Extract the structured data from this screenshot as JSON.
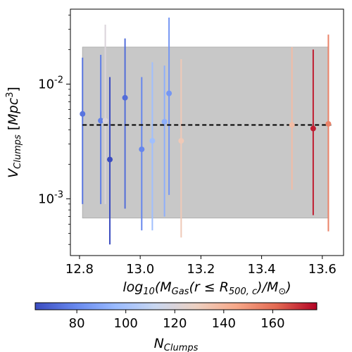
{
  "chart_data": {
    "type": "scatter",
    "title": "",
    "xlabel": "log10(M_Gas(r ≤ R_500,c)/M_⊙)",
    "ylabel": "V_Clumps [Mpc^3]",
    "xlim": [
      12.77,
      13.67
    ],
    "ylim": [
      0.00032,
      0.045
    ],
    "yscale": "log",
    "x_ticks": [
      12.8,
      13.0,
      13.2,
      13.4,
      13.6
    ],
    "x_tick_labels": [
      "12.8",
      "13.0",
      "13.2",
      "13.4",
      "13.6"
    ],
    "y_ticks": [
      0.001,
      0.01
    ],
    "y_tick_labels_exp": [
      "-3",
      "-2"
    ],
    "y_tick_base": "10",
    "reference_line": {
      "y": 0.0044,
      "style": "dashed",
      "color": "#000000"
    },
    "shaded_band": {
      "x_range": [
        12.81,
        13.62
      ],
      "y_range": [
        0.00068,
        0.021
      ],
      "color": "#c8c8c8"
    },
    "points": [
      {
        "x": 12.81,
        "y": 0.0055,
        "ylow": 0.0009,
        "yhigh": 0.017,
        "n": 74
      },
      {
        "x": 12.87,
        "y": 0.0048,
        "ylow": 0.0009,
        "yhigh": 0.018,
        "n": 77
      },
      {
        "x": 12.885,
        "y": 0.0048,
        "ylow": 0.0009,
        "yhigh": 0.033,
        "n": 120
      },
      {
        "x": 12.9,
        "y": 0.0022,
        "ylow": 0.0004,
        "yhigh": 0.0115,
        "n": 63
      },
      {
        "x": 12.95,
        "y": 0.0076,
        "ylow": 0.00082,
        "yhigh": 0.025,
        "n": 72
      },
      {
        "x": 13.005,
        "y": 0.0027,
        "ylow": 0.00053,
        "yhigh": 0.0115,
        "n": 79
      },
      {
        "x": 13.04,
        "y": 0.0032,
        "ylow": 0.00053,
        "yhigh": 0.0155,
        "n": 98
      },
      {
        "x": 13.08,
        "y": 0.0047,
        "ylow": 0.0007,
        "yhigh": 0.0145,
        "n": 92
      },
      {
        "x": 13.095,
        "y": 0.0083,
        "ylow": 0.00108,
        "yhigh": 0.038,
        "n": 84
      },
      {
        "x": 13.135,
        "y": 0.0032,
        "ylow": 0.00046,
        "yhigh": 0.0165,
        "n": 132
      },
      {
        "x": 13.5,
        "y": 0.0044,
        "ylow": 0.0012,
        "yhigh": 0.021,
        "n": 137
      },
      {
        "x": 13.57,
        "y": 0.0041,
        "ylow": 0.00072,
        "yhigh": 0.02,
        "n": 174
      },
      {
        "x": 13.62,
        "y": 0.0045,
        "ylow": 0.00052,
        "yhigh": 0.027,
        "n": 155
      }
    ],
    "colorbar": {
      "label": "N_Clumps",
      "range": [
        63,
        178
      ],
      "ticks": [
        80,
        100,
        120,
        140,
        160
      ],
      "tick_labels": [
        "80",
        "100",
        "120",
        "140",
        "160"
      ],
      "colormap": "coolwarm",
      "colormap_stops": [
        "#3b4cc0",
        "#6788ee",
        "#9abbff",
        "#c9d7f0",
        "#edd1c2",
        "#f7a889",
        "#e26952",
        "#b40426"
      ]
    }
  }
}
